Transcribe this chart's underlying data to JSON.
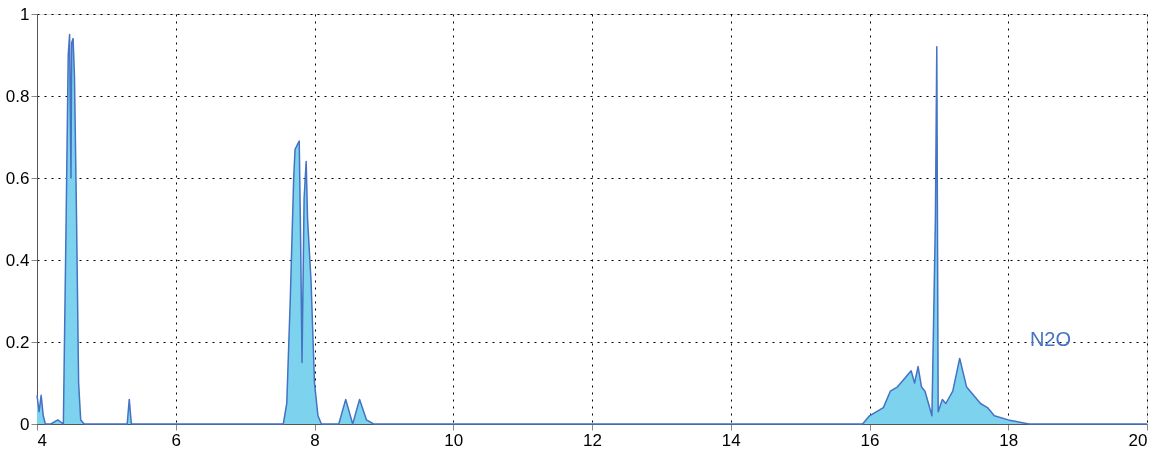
{
  "chart_data": {
    "type": "area",
    "grid": true,
    "line_style": "solid",
    "xlim": [
      4,
      20
    ],
    "ylim": [
      0,
      1
    ],
    "xticks": [
      4,
      6,
      8,
      10,
      12,
      14,
      16,
      18,
      20
    ],
    "yticks": [
      0,
      0.2,
      0.4,
      0.6,
      0.8,
      1
    ],
    "series": [
      {
        "name": "N2O",
        "color": "#7dd3ee",
        "x": [
          4.0,
          4.03,
          4.06,
          4.09,
          4.12,
          4.2,
          4.3,
          4.38,
          4.42,
          4.45,
          4.47,
          4.49,
          4.5,
          4.52,
          4.54,
          4.57,
          4.6,
          4.63,
          4.68,
          5.3,
          5.33,
          5.36,
          7.55,
          7.6,
          7.65,
          7.7,
          7.72,
          7.75,
          7.78,
          7.8,
          7.82,
          7.85,
          7.88,
          7.9,
          7.95,
          8.0,
          8.05,
          8.1,
          8.35,
          8.45,
          8.55,
          8.65,
          8.75,
          8.85,
          15.9,
          16.0,
          16.2,
          16.3,
          16.4,
          16.5,
          16.6,
          16.65,
          16.7,
          16.75,
          16.8,
          16.9,
          16.95,
          16.97,
          16.99,
          17.05,
          17.1,
          17.2,
          17.3,
          17.4,
          17.5,
          17.6,
          17.7,
          17.8,
          18.0,
          18.3,
          20.0
        ],
        "values": [
          0.07,
          0.03,
          0.07,
          0.02,
          0.0,
          0.0,
          0.01,
          0.0,
          0.5,
          0.9,
          0.95,
          0.6,
          0.93,
          0.94,
          0.85,
          0.5,
          0.1,
          0.01,
          0.0,
          0.0,
          0.06,
          0.0,
          0.0,
          0.05,
          0.3,
          0.6,
          0.67,
          0.68,
          0.69,
          0.45,
          0.15,
          0.55,
          0.64,
          0.5,
          0.35,
          0.1,
          0.02,
          0.0,
          0.0,
          0.06,
          0.0,
          0.06,
          0.01,
          0.0,
          0.0,
          0.02,
          0.04,
          0.08,
          0.09,
          0.11,
          0.13,
          0.1,
          0.14,
          0.09,
          0.08,
          0.02,
          0.5,
          0.92,
          0.03,
          0.06,
          0.05,
          0.08,
          0.16,
          0.09,
          0.07,
          0.05,
          0.04,
          0.02,
          0.01,
          0.0,
          0.0
        ]
      }
    ]
  }
}
